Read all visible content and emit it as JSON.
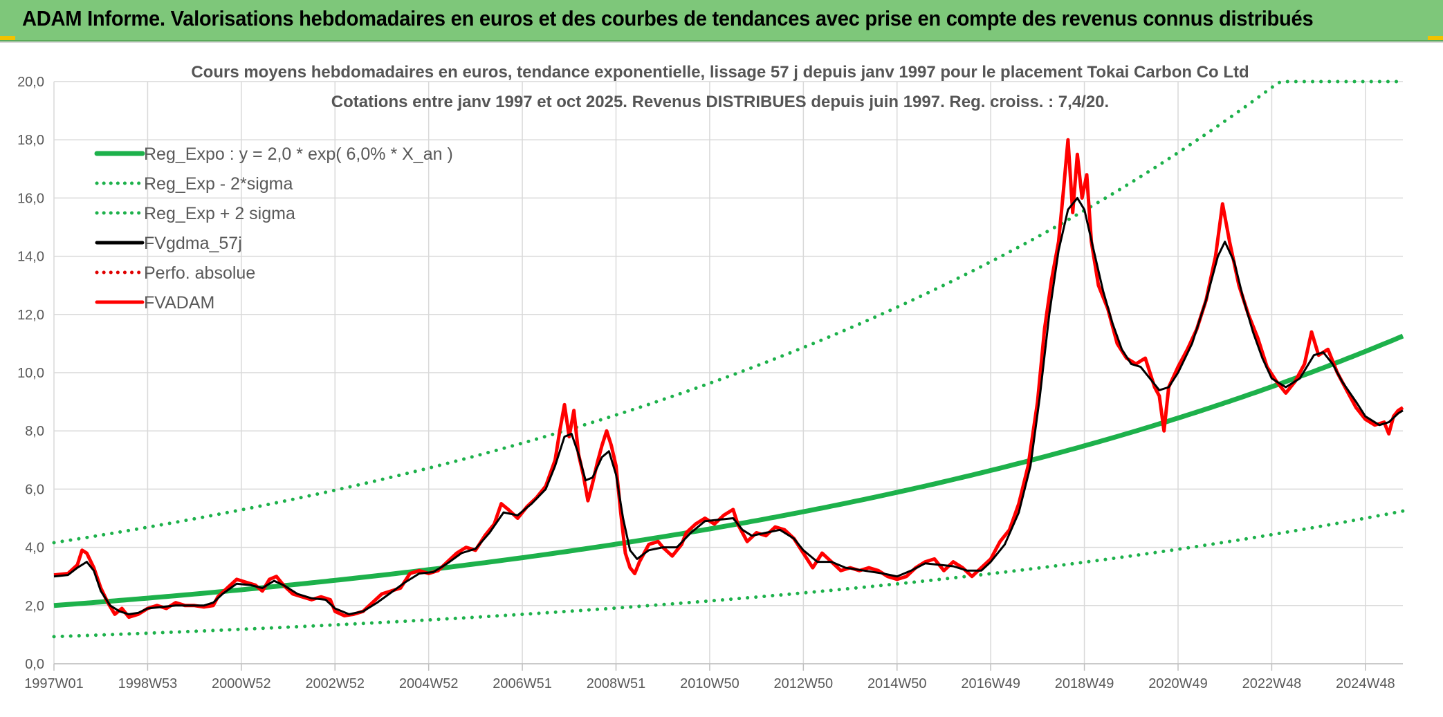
{
  "banner": {
    "title": "ADAM Informe. Valorisations hebdomadaires en euros et des courbes de tendances avec prise en compte des revenus connus distribués"
  },
  "chart_data": {
    "type": "line",
    "title_line1": "Cours moyens hebdomadaires en euros, tendance exponentielle, lissage 57 j depuis janv 1997 pour le placement Tokai Carbon Co Ltd",
    "title_line2": "Cotations entre janv 1997 et oct 2025. Revenus DISTRIBUES depuis juin 1997. Reg. croiss. : 7,4/20.",
    "x_tick_labels": [
      "1997W01",
      "1998W53",
      "2000W52",
      "2002W52",
      "2004W52",
      "2006W51",
      "2008W51",
      "2010W50",
      "2012W50",
      "2014W50",
      "2016W49",
      "2018W49",
      "2020W49",
      "2022W48",
      "2024W48"
    ],
    "x_tick_years": [
      1997.0,
      1999.0,
      2001.0,
      2003.0,
      2005.0,
      2007.0,
      2009.0,
      2011.0,
      2013.0,
      2015.0,
      2017.0,
      2019.0,
      2021.0,
      2023.0,
      2025.0
    ],
    "xlim": [
      1997.0,
      2025.8
    ],
    "ylim": [
      0,
      20
    ],
    "y_ticks": [
      "0,0",
      "2,0",
      "4,0",
      "6,0",
      "8,0",
      "10,0",
      "12,0",
      "14,0",
      "16,0",
      "18,0",
      "20,0"
    ],
    "y_tick_values": [
      0,
      2,
      4,
      6,
      8,
      10,
      12,
      14,
      16,
      18,
      20
    ],
    "grid": true,
    "legend_position": "top-left",
    "legend": [
      {
        "name": "Reg_Expo : y = 2,0 * exp( 6,0% *  X_an )",
        "color": "#1db14b",
        "style": "solid"
      },
      {
        "name": "Reg_Exp - 2*sigma",
        "color": "#1db14b",
        "style": "dotted"
      },
      {
        "name": "Reg_Exp + 2 sigma",
        "color": "#1db14b",
        "style": "dotted"
      },
      {
        "name": "FVgdma_57j",
        "color": "#000000",
        "style": "solid"
      },
      {
        "name": "Perfo. absolue",
        "color": "#e00000",
        "style": "dotted"
      },
      {
        "name": "FVADAM",
        "color": "#ff0000",
        "style": "solid"
      }
    ],
    "regression": {
      "a": 2.0,
      "rate": 0.06,
      "lower_factor": 0.466,
      "upper_factor": 2.08,
      "cap": 20
    },
    "fvadam": [
      [
        1997.0,
        3.05
      ],
      [
        1997.3,
        3.1
      ],
      [
        1997.5,
        3.4
      ],
      [
        1997.6,
        3.9
      ],
      [
        1997.7,
        3.8
      ],
      [
        1997.85,
        3.3
      ],
      [
        1998.0,
        2.6
      ],
      [
        1998.15,
        2.1
      ],
      [
        1998.3,
        1.7
      ],
      [
        1998.45,
        1.9
      ],
      [
        1998.6,
        1.6
      ],
      [
        1998.8,
        1.7
      ],
      [
        1999.0,
        1.9
      ],
      [
        1999.2,
        2.0
      ],
      [
        1999.4,
        1.9
      ],
      [
        1999.6,
        2.1
      ],
      [
        1999.8,
        2.0
      ],
      [
        2000.0,
        2.0
      ],
      [
        2000.2,
        1.95
      ],
      [
        2000.4,
        2.0
      ],
      [
        2000.5,
        2.3
      ],
      [
        2000.7,
        2.6
      ],
      [
        2000.9,
        2.9
      ],
      [
        2001.1,
        2.8
      ],
      [
        2001.3,
        2.7
      ],
      [
        2001.45,
        2.5
      ],
      [
        2001.6,
        2.9
      ],
      [
        2001.75,
        3.0
      ],
      [
        2001.9,
        2.7
      ],
      [
        2002.1,
        2.4
      ],
      [
        2002.3,
        2.3
      ],
      [
        2002.5,
        2.2
      ],
      [
        2002.7,
        2.3
      ],
      [
        2002.9,
        2.2
      ],
      [
        2003.0,
        1.8
      ],
      [
        2003.2,
        1.65
      ],
      [
        2003.4,
        1.7
      ],
      [
        2003.6,
        1.8
      ],
      [
        2003.8,
        2.1
      ],
      [
        2004.0,
        2.4
      ],
      [
        2004.2,
        2.5
      ],
      [
        2004.4,
        2.6
      ],
      [
        2004.6,
        3.1
      ],
      [
        2004.8,
        3.2
      ],
      [
        2005.0,
        3.1
      ],
      [
        2005.2,
        3.2
      ],
      [
        2005.4,
        3.5
      ],
      [
        2005.6,
        3.8
      ],
      [
        2005.8,
        4.0
      ],
      [
        2006.0,
        3.9
      ],
      [
        2006.2,
        4.4
      ],
      [
        2006.4,
        4.8
      ],
      [
        2006.55,
        5.5
      ],
      [
        2006.7,
        5.3
      ],
      [
        2006.9,
        5.0
      ],
      [
        2007.1,
        5.4
      ],
      [
        2007.3,
        5.7
      ],
      [
        2007.5,
        6.1
      ],
      [
        2007.7,
        7.0
      ],
      [
        2007.8,
        8.0
      ],
      [
        2007.9,
        8.9
      ],
      [
        2008.0,
        7.8
      ],
      [
        2008.1,
        8.7
      ],
      [
        2008.2,
        7.2
      ],
      [
        2008.3,
        6.5
      ],
      [
        2008.4,
        5.6
      ],
      [
        2008.5,
        6.2
      ],
      [
        2008.6,
        6.9
      ],
      [
        2008.7,
        7.5
      ],
      [
        2008.8,
        8.0
      ],
      [
        2008.9,
        7.5
      ],
      [
        2009.0,
        6.8
      ],
      [
        2009.1,
        5.2
      ],
      [
        2009.2,
        3.8
      ],
      [
        2009.3,
        3.3
      ],
      [
        2009.4,
        3.1
      ],
      [
        2009.5,
        3.5
      ],
      [
        2009.7,
        4.1
      ],
      [
        2009.9,
        4.2
      ],
      [
        2010.0,
        4.0
      ],
      [
        2010.2,
        3.7
      ],
      [
        2010.4,
        4.1
      ],
      [
        2010.5,
        4.5
      ],
      [
        2010.7,
        4.8
      ],
      [
        2010.9,
        5.0
      ],
      [
        2011.1,
        4.8
      ],
      [
        2011.3,
        5.1
      ],
      [
        2011.5,
        5.3
      ],
      [
        2011.6,
        4.8
      ],
      [
        2011.8,
        4.2
      ],
      [
        2012.0,
        4.5
      ],
      [
        2012.2,
        4.4
      ],
      [
        2012.4,
        4.7
      ],
      [
        2012.6,
        4.6
      ],
      [
        2012.8,
        4.3
      ],
      [
        2013.0,
        3.8
      ],
      [
        2013.2,
        3.3
      ],
      [
        2013.4,
        3.8
      ],
      [
        2013.6,
        3.5
      ],
      [
        2013.8,
        3.2
      ],
      [
        2014.0,
        3.3
      ],
      [
        2014.2,
        3.2
      ],
      [
        2014.4,
        3.3
      ],
      [
        2014.6,
        3.2
      ],
      [
        2014.8,
        3.0
      ],
      [
        2015.0,
        2.9
      ],
      [
        2015.2,
        3.0
      ],
      [
        2015.4,
        3.3
      ],
      [
        2015.6,
        3.5
      ],
      [
        2015.8,
        3.6
      ],
      [
        2016.0,
        3.2
      ],
      [
        2016.2,
        3.5
      ],
      [
        2016.4,
        3.3
      ],
      [
        2016.6,
        3.0
      ],
      [
        2016.8,
        3.3
      ],
      [
        2017.0,
        3.6
      ],
      [
        2017.2,
        4.2
      ],
      [
        2017.4,
        4.6
      ],
      [
        2017.6,
        5.5
      ],
      [
        2017.8,
        6.8
      ],
      [
        2018.0,
        9.0
      ],
      [
        2018.15,
        11.5
      ],
      [
        2018.3,
        13.2
      ],
      [
        2018.45,
        14.5
      ],
      [
        2018.55,
        16.2
      ],
      [
        2018.65,
        18.0
      ],
      [
        2018.75,
        15.5
      ],
      [
        2018.85,
        17.5
      ],
      [
        2018.95,
        16.0
      ],
      [
        2019.05,
        16.8
      ],
      [
        2019.15,
        14.5
      ],
      [
        2019.3,
        13.0
      ],
      [
        2019.5,
        12.2
      ],
      [
        2019.7,
        11.0
      ],
      [
        2019.9,
        10.5
      ],
      [
        2020.1,
        10.3
      ],
      [
        2020.3,
        10.5
      ],
      [
        2020.5,
        9.5
      ],
      [
        2020.6,
        9.2
      ],
      [
        2020.7,
        8.0
      ],
      [
        2020.8,
        9.5
      ],
      [
        2021.0,
        10.2
      ],
      [
        2021.2,
        10.8
      ],
      [
        2021.4,
        11.5
      ],
      [
        2021.6,
        12.5
      ],
      [
        2021.8,
        14.0
      ],
      [
        2021.95,
        15.8
      ],
      [
        2022.1,
        14.5
      ],
      [
        2022.3,
        13.0
      ],
      [
        2022.5,
        12.0
      ],
      [
        2022.7,
        11.2
      ],
      [
        2022.9,
        10.2
      ],
      [
        2023.1,
        9.7
      ],
      [
        2023.3,
        9.3
      ],
      [
        2023.5,
        9.7
      ],
      [
        2023.7,
        10.3
      ],
      [
        2023.85,
        11.4
      ],
      [
        2024.0,
        10.6
      ],
      [
        2024.2,
        10.8
      ],
      [
        2024.4,
        10.0
      ],
      [
        2024.6,
        9.4
      ],
      [
        2024.8,
        8.8
      ],
      [
        2025.0,
        8.4
      ],
      [
        2025.2,
        8.2
      ],
      [
        2025.4,
        8.3
      ],
      [
        2025.5,
        7.9
      ],
      [
        2025.6,
        8.5
      ],
      [
        2025.7,
        8.7
      ],
      [
        2025.8,
        8.8
      ]
    ],
    "fvgdma": [
      [
        1997.0,
        3.0
      ],
      [
        1997.3,
        3.05
      ],
      [
        1997.5,
        3.3
      ],
      [
        1997.7,
        3.5
      ],
      [
        1997.85,
        3.2
      ],
      [
        1998.0,
        2.5
      ],
      [
        1998.2,
        2.0
      ],
      [
        1998.4,
        1.8
      ],
      [
        1998.6,
        1.7
      ],
      [
        1998.8,
        1.75
      ],
      [
        1999.0,
        1.9
      ],
      [
        1999.3,
        1.95
      ],
      [
        1999.6,
        2.0
      ],
      [
        1999.9,
        2.0
      ],
      [
        2000.2,
        2.0
      ],
      [
        2000.4,
        2.1
      ],
      [
        2000.6,
        2.4
      ],
      [
        2000.9,
        2.75
      ],
      [
        2001.2,
        2.7
      ],
      [
        2001.45,
        2.6
      ],
      [
        2001.7,
        2.85
      ],
      [
        2001.9,
        2.7
      ],
      [
        2002.2,
        2.4
      ],
      [
        2002.5,
        2.25
      ],
      [
        2002.8,
        2.2
      ],
      [
        2003.0,
        1.9
      ],
      [
        2003.3,
        1.7
      ],
      [
        2003.6,
        1.8
      ],
      [
        2003.9,
        2.1
      ],
      [
        2004.2,
        2.45
      ],
      [
        2004.5,
        2.8
      ],
      [
        2004.8,
        3.1
      ],
      [
        2005.1,
        3.15
      ],
      [
        2005.4,
        3.45
      ],
      [
        2005.7,
        3.8
      ],
      [
        2006.0,
        3.95
      ],
      [
        2006.3,
        4.5
      ],
      [
        2006.6,
        5.2
      ],
      [
        2006.9,
        5.1
      ],
      [
        2007.2,
        5.5
      ],
      [
        2007.5,
        6.0
      ],
      [
        2007.7,
        6.8
      ],
      [
        2007.9,
        7.8
      ],
      [
        2008.05,
        7.9
      ],
      [
        2008.2,
        7.2
      ],
      [
        2008.35,
        6.3
      ],
      [
        2008.5,
        6.4
      ],
      [
        2008.7,
        7.1
      ],
      [
        2008.85,
        7.3
      ],
      [
        2009.0,
        6.5
      ],
      [
        2009.15,
        5.0
      ],
      [
        2009.3,
        3.9
      ],
      [
        2009.45,
        3.6
      ],
      [
        2009.7,
        3.9
      ],
      [
        2010.0,
        4.0
      ],
      [
        2010.3,
        4.0
      ],
      [
        2010.6,
        4.5
      ],
      [
        2010.9,
        4.9
      ],
      [
        2011.2,
        4.95
      ],
      [
        2011.5,
        5.0
      ],
      [
        2011.7,
        4.6
      ],
      [
        2011.9,
        4.4
      ],
      [
        2012.2,
        4.5
      ],
      [
        2012.5,
        4.6
      ],
      [
        2012.8,
        4.3
      ],
      [
        2013.0,
        3.9
      ],
      [
        2013.3,
        3.5
      ],
      [
        2013.6,
        3.5
      ],
      [
        2013.9,
        3.3
      ],
      [
        2014.3,
        3.2
      ],
      [
        2014.7,
        3.1
      ],
      [
        2015.0,
        3.0
      ],
      [
        2015.3,
        3.2
      ],
      [
        2015.6,
        3.45
      ],
      [
        2015.9,
        3.4
      ],
      [
        2016.2,
        3.35
      ],
      [
        2016.5,
        3.2
      ],
      [
        2016.8,
        3.2
      ],
      [
        2017.0,
        3.5
      ],
      [
        2017.3,
        4.1
      ],
      [
        2017.6,
        5.2
      ],
      [
        2017.85,
        6.8
      ],
      [
        2018.05,
        9.2
      ],
      [
        2018.25,
        12.0
      ],
      [
        2018.45,
        14.2
      ],
      [
        2018.65,
        15.6
      ],
      [
        2018.85,
        16.0
      ],
      [
        2019.0,
        15.6
      ],
      [
        2019.2,
        14.2
      ],
      [
        2019.4,
        12.8
      ],
      [
        2019.6,
        11.7
      ],
      [
        2019.8,
        10.8
      ],
      [
        2020.0,
        10.3
      ],
      [
        2020.2,
        10.2
      ],
      [
        2020.4,
        9.8
      ],
      [
        2020.6,
        9.4
      ],
      [
        2020.8,
        9.5
      ],
      [
        2021.0,
        10.0
      ],
      [
        2021.3,
        11.0
      ],
      [
        2021.6,
        12.5
      ],
      [
        2021.85,
        14.0
      ],
      [
        2022.0,
        14.5
      ],
      [
        2022.2,
        13.8
      ],
      [
        2022.4,
        12.5
      ],
      [
        2022.6,
        11.4
      ],
      [
        2022.8,
        10.5
      ],
      [
        2023.0,
        9.8
      ],
      [
        2023.3,
        9.5
      ],
      [
        2023.6,
        9.8
      ],
      [
        2023.9,
        10.6
      ],
      [
        2024.1,
        10.7
      ],
      [
        2024.3,
        10.3
      ],
      [
        2024.5,
        9.7
      ],
      [
        2024.8,
        9.0
      ],
      [
        2025.0,
        8.5
      ],
      [
        2025.3,
        8.2
      ],
      [
        2025.5,
        8.3
      ],
      [
        2025.7,
        8.6
      ],
      [
        2025.8,
        8.7
      ]
    ]
  }
}
